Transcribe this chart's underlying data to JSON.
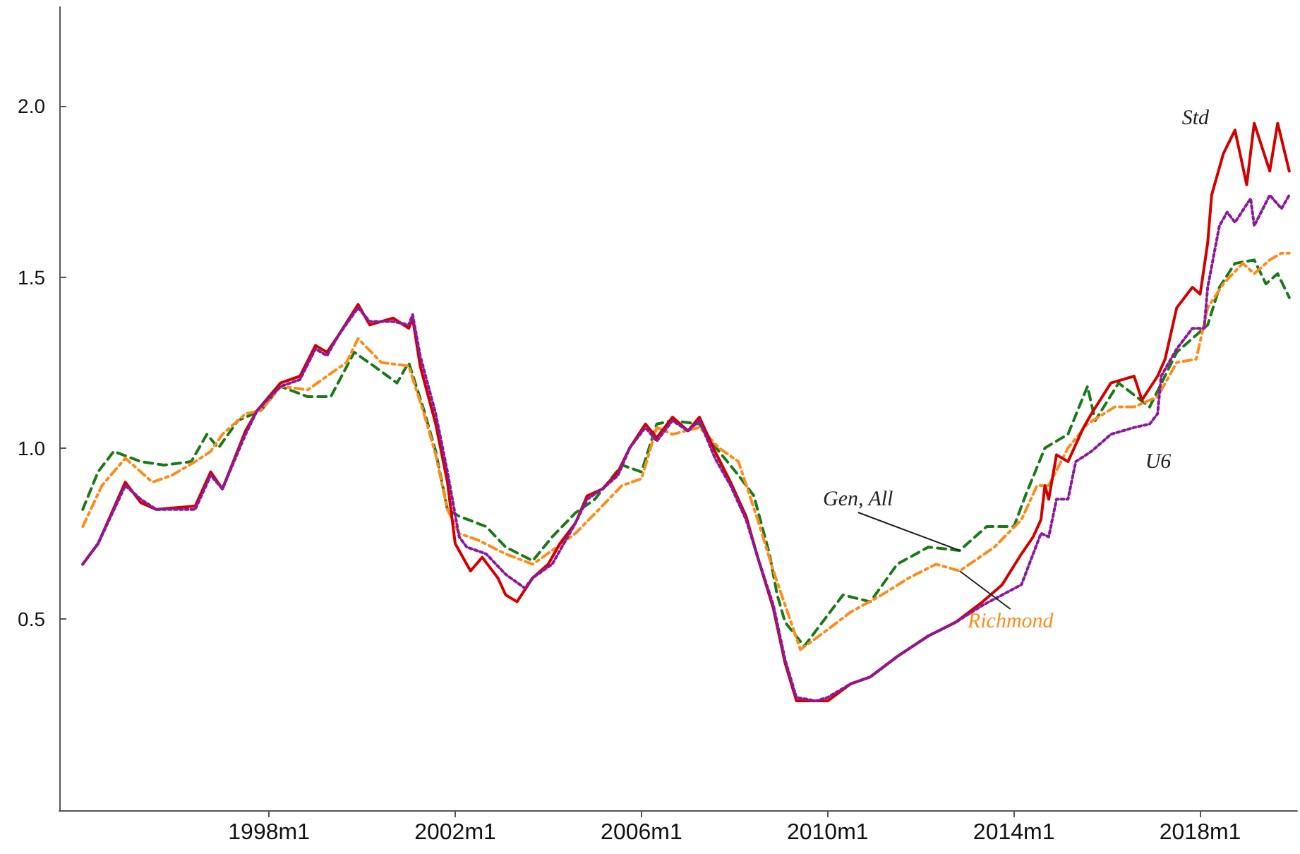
{
  "chart_data": {
    "type": "line",
    "xlim": [
      "1993-07",
      "2020-02"
    ],
    "ylim": [
      -0.06,
      2.29
    ],
    "xticks": [
      {
        "value": "1998-01",
        "label": "1998m1"
      },
      {
        "value": "2002-01",
        "label": "2002m1"
      },
      {
        "value": "2006-01",
        "label": "2006m1"
      },
      {
        "value": "2010-01",
        "label": "2010m1"
      },
      {
        "value": "2014-01",
        "label": "2014m1"
      },
      {
        "value": "2018-01",
        "label": "2018m1"
      }
    ],
    "yticks": [
      0.5,
      {
        "value": 1,
        "label": "1.0"
      },
      1.5,
      {
        "value": 2,
        "label": "2.0"
      }
    ],
    "grid": false,
    "legend": false,
    "marker": "none",
    "series": [
      {
        "name": "Gen, All",
        "color": "#1a7a1a",
        "line_style": "dashed",
        "x": [
          "1994-01",
          "1994-05",
          "1994-09",
          "1995-04",
          "1995-10",
          "1996-05",
          "1996-09",
          "1996-12",
          "1997-05",
          "1997-11",
          "1998-04",
          "1998-11",
          "1999-05",
          "1999-11",
          "2000-04",
          "2000-10",
          "2001-01",
          "2001-05",
          "2001-08",
          "2001-11",
          "2002-02",
          "2002-09",
          "2003-02",
          "2003-09",
          "2004-02",
          "2004-08",
          "2005-01",
          "2005-08",
          "2006-01",
          "2006-05",
          "2006-09",
          "2007-04",
          "2007-09",
          "2008-02",
          "2008-06",
          "2008-10",
          "2008-12",
          "2009-02",
          "2009-07",
          "2010-05",
          "2010-12",
          "2011-07",
          "2012-03",
          "2012-11",
          "2013-06",
          "2014-01",
          "2014-04",
          "2014-09",
          "2015-03",
          "2015-08",
          "2015-10",
          "2016-04",
          "2016-12",
          "2017-07",
          "2018-03",
          "2018-06",
          "2018-10",
          "2019-03",
          "2019-06",
          "2019-09",
          "2019-12"
        ],
        "values": [
          0.82,
          0.93,
          0.99,
          0.96,
          0.95,
          0.96,
          1.04,
          1.0,
          1.08,
          1.11,
          1.18,
          1.15,
          1.15,
          1.28,
          1.24,
          1.19,
          1.25,
          1.11,
          0.99,
          0.82,
          0.8,
          0.77,
          0.71,
          0.67,
          0.74,
          0.81,
          0.85,
          0.95,
          0.93,
          1.07,
          1.08,
          1.07,
          0.99,
          0.92,
          0.86,
          0.69,
          0.57,
          0.49,
          0.42,
          0.57,
          0.55,
          0.66,
          0.71,
          0.7,
          0.77,
          0.77,
          0.86,
          1.0,
          1.04,
          1.18,
          1.08,
          1.19,
          1.12,
          1.28,
          1.36,
          1.47,
          1.54,
          1.55,
          1.48,
          1.51,
          1.44
        ]
      },
      {
        "name": "Richmond",
        "color": "#ff8c1a",
        "line_style": "dashdot",
        "x": [
          "1994-01",
          "1994-06",
          "1994-12",
          "1995-07",
          "1995-12",
          "1996-06",
          "1996-10",
          "1997-01",
          "1997-07",
          "1997-11",
          "1998-04",
          "1998-11",
          "1999-04",
          "1999-09",
          "1999-12",
          "2000-06",
          "2001-01",
          "2001-05",
          "2001-08",
          "2001-11",
          "2002-02",
          "2002-07",
          "2003-02",
          "2003-09",
          "2004-02",
          "2004-08",
          "2005-02",
          "2005-08",
          "2006-01",
          "2006-05",
          "2006-09",
          "2007-04",
          "2007-09",
          "2008-02",
          "2008-07",
          "2008-11",
          "2009-06",
          "2009-12",
          "2010-07",
          "2011-03",
          "2011-10",
          "2012-05",
          "2012-11",
          "2013-08",
          "2014-03",
          "2014-07",
          "2014-10",
          "2015-03",
          "2015-08",
          "2016-03",
          "2016-08",
          "2017-02",
          "2017-07",
          "2017-12",
          "2018-03",
          "2018-07",
          "2018-12",
          "2019-03",
          "2019-07",
          "2019-10",
          "2019-12"
        ],
        "values": [
          0.77,
          0.89,
          0.97,
          0.9,
          0.92,
          0.96,
          0.99,
          1.04,
          1.1,
          1.11,
          1.18,
          1.17,
          1.21,
          1.25,
          1.32,
          1.25,
          1.24,
          1.1,
          0.98,
          0.82,
          0.75,
          0.73,
          0.69,
          0.66,
          0.7,
          0.75,
          0.82,
          0.89,
          0.91,
          1.06,
          1.04,
          1.06,
          1.0,
          0.96,
          0.79,
          0.64,
          0.41,
          0.46,
          0.52,
          0.57,
          0.62,
          0.66,
          0.64,
          0.71,
          0.79,
          0.89,
          0.89,
          1.0,
          1.07,
          1.12,
          1.12,
          1.15,
          1.25,
          1.26,
          1.41,
          1.48,
          1.54,
          1.51,
          1.55,
          1.57,
          1.57
        ]
      },
      {
        "name": "U6",
        "color": "#8b1a9b",
        "line_style": "dotted",
        "x": [
          "1994-01",
          "1994-05",
          "1994-12",
          "1995-04",
          "1995-08",
          "1996-06",
          "1996-10",
          "1997-01",
          "1997-07",
          "1997-10",
          "1998-04",
          "1998-09",
          "1999-01",
          "1999-04",
          "1999-07",
          "1999-12",
          "2000-03",
          "2000-09",
          "2001-01",
          "2001-02",
          "2001-04",
          "2001-08",
          "2001-11",
          "2002-02",
          "2002-04",
          "2002-09",
          "2003-02",
          "2003-07",
          "2003-09",
          "2004-02",
          "2004-08",
          "2004-11",
          "2005-03",
          "2005-07",
          "2005-10",
          "2006-02",
          "2006-05",
          "2006-09",
          "2007-01",
          "2007-04",
          "2007-08",
          "2007-12",
          "2008-04",
          "2008-07",
          "2008-11",
          "2009-02",
          "2009-05",
          "2009-10",
          "2010-01",
          "2010-07",
          "2010-12",
          "2011-07",
          "2012-03",
          "2012-10",
          "2013-05",
          "2013-10",
          "2014-03",
          "2014-08",
          "2014-10",
          "2014-12",
          "2015-03",
          "2015-05",
          "2015-09",
          "2016-02",
          "2016-08",
          "2016-12",
          "2017-02",
          "2017-03",
          "2017-07",
          "2017-11",
          "2018-02",
          "2018-03",
          "2018-06",
          "2018-08",
          "2018-10",
          "2019-02",
          "2019-03",
          "2019-07",
          "2019-10",
          "2019-12"
        ],
        "values": [
          0.66,
          0.72,
          0.89,
          0.85,
          0.82,
          0.82,
          0.92,
          0.88,
          1.04,
          1.11,
          1.18,
          1.2,
          1.29,
          1.27,
          1.33,
          1.41,
          1.37,
          1.37,
          1.36,
          1.39,
          1.27,
          1.1,
          0.93,
          0.74,
          0.71,
          0.69,
          0.63,
          0.59,
          0.62,
          0.66,
          0.78,
          0.85,
          0.88,
          0.92,
          1.0,
          1.06,
          1.02,
          1.08,
          1.05,
          1.08,
          0.97,
          0.89,
          0.79,
          0.68,
          0.54,
          0.38,
          0.27,
          0.26,
          0.27,
          0.31,
          0.33,
          0.39,
          0.45,
          0.49,
          0.54,
          0.57,
          0.6,
          0.75,
          0.74,
          0.85,
          0.85,
          0.96,
          0.99,
          1.04,
          1.06,
          1.07,
          1.1,
          1.21,
          1.29,
          1.35,
          1.35,
          1.47,
          1.65,
          1.69,
          1.66,
          1.73,
          1.65,
          1.74,
          1.7,
          1.74
        ]
      },
      {
        "name": "Std",
        "color": "#d40000",
        "line_style": "solid",
        "x": [
          "1994-01",
          "1994-05",
          "1994-12",
          "1995-04",
          "1995-08",
          "1996-06",
          "1996-10",
          "1997-01",
          "1997-07",
          "1997-10",
          "1998-04",
          "1998-09",
          "1999-01",
          "1999-04",
          "1999-07",
          "1999-12",
          "2000-03",
          "2000-09",
          "2001-01",
          "2001-02",
          "2001-04",
          "2001-08",
          "2001-11",
          "2002-01",
          "2002-05",
          "2002-08",
          "2002-12",
          "2003-02",
          "2003-05",
          "2003-09",
          "2004-01",
          "2004-04",
          "2004-08",
          "2004-11",
          "2005-03",
          "2005-07",
          "2005-10",
          "2006-02",
          "2006-05",
          "2006-09",
          "2007-01",
          "2007-04",
          "2007-08",
          "2007-12",
          "2008-04",
          "2008-07",
          "2008-11",
          "2009-02",
          "2009-05",
          "2009-10",
          "2010-01",
          "2010-07",
          "2010-12",
          "2011-07",
          "2012-03",
          "2012-10",
          "2013-05",
          "2013-10",
          "2014-03",
          "2014-06",
          "2014-08",
          "2014-09",
          "2014-10",
          "2014-12",
          "2015-03",
          "2015-07",
          "2015-09",
          "2016-02",
          "2016-08",
          "2016-10",
          "2017-02",
          "2017-04",
          "2017-07",
          "2017-11",
          "2018-01",
          "2018-03",
          "2018-04",
          "2018-07",
          "2018-10",
          "2019-01",
          "2019-03",
          "2019-07",
          "2019-09",
          "2019-12"
        ],
        "values": [
          0.66,
          0.72,
          0.9,
          0.84,
          0.82,
          0.83,
          0.93,
          0.88,
          1.05,
          1.11,
          1.19,
          1.21,
          1.3,
          1.28,
          1.33,
          1.42,
          1.36,
          1.38,
          1.35,
          1.38,
          1.24,
          1.07,
          0.9,
          0.72,
          0.64,
          0.68,
          0.62,
          0.57,
          0.55,
          0.62,
          0.66,
          0.72,
          0.78,
          0.86,
          0.88,
          0.93,
          1.0,
          1.07,
          1.03,
          1.09,
          1.05,
          1.09,
          0.99,
          0.9,
          0.8,
          0.68,
          0.53,
          0.37,
          0.26,
          0.26,
          0.26,
          0.31,
          0.33,
          0.39,
          0.45,
          0.49,
          0.55,
          0.6,
          0.69,
          0.74,
          0.79,
          0.89,
          0.85,
          0.98,
          0.96,
          1.06,
          1.1,
          1.19,
          1.21,
          1.14,
          1.21,
          1.26,
          1.41,
          1.47,
          1.45,
          1.6,
          1.74,
          1.86,
          1.93,
          1.77,
          1.95,
          1.81,
          1.95,
          1.81
        ]
      }
    ]
  }
}
